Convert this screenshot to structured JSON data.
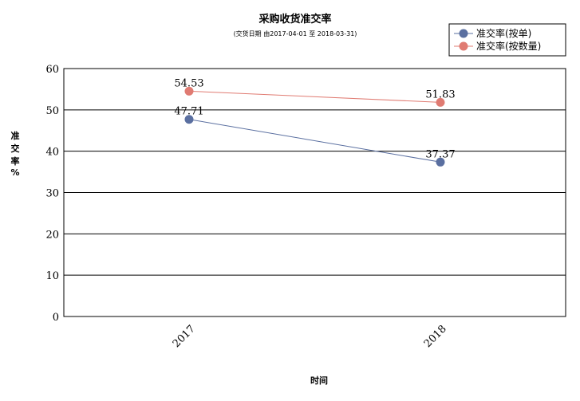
{
  "chart_data": {
    "type": "line",
    "title": "采购收货准交率",
    "subtitle": "(交货日期 由2017-04-01 至 2018-03-31)",
    "xlabel": "时间",
    "ylabel": "准交率 %",
    "categories": [
      "2017",
      "2018"
    ],
    "ylim": [
      0,
      60
    ],
    "yticks": [
      0,
      10,
      20,
      30,
      40,
      50,
      60
    ],
    "grid": true,
    "legend": "top-right",
    "series": [
      {
        "name": "准交率(按单)",
        "values": [
          47.71,
          37.37
        ],
        "labels": [
          "47.71",
          "37.37"
        ],
        "color": "#5a6fa0"
      },
      {
        "name": "准交率(按数量)",
        "values": [
          54.53,
          51.83
        ],
        "labels": [
          "54.53",
          "51.83"
        ],
        "color": "#e07b72"
      }
    ]
  }
}
